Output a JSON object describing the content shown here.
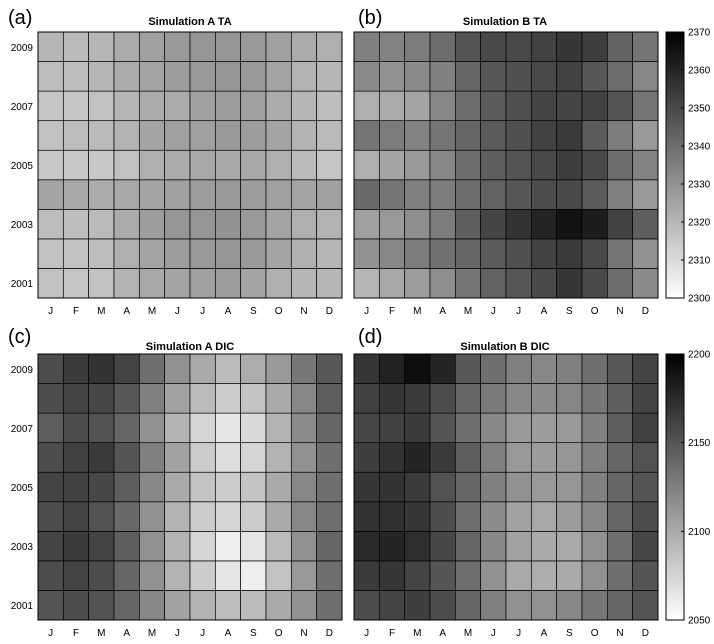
{
  "chart_data": [
    {
      "type": "heatmap",
      "panel_label": "(a)",
      "title": "Simulation A TA",
      "x": [
        "J",
        "F",
        "M",
        "A",
        "M",
        "J",
        "J",
        "A",
        "S",
        "O",
        "N",
        "D"
      ],
      "y": [
        2001,
        2002,
        2003,
        2004,
        2005,
        2006,
        2007,
        2008,
        2009
      ],
      "y_tick_labels": [
        "2001",
        "2003",
        "2005",
        "2007",
        "2009"
      ],
      "values": [
        [
          2317,
          2316,
          2317,
          2321,
          2324,
          2325,
          2326,
          2327,
          2325,
          2322,
          2320,
          2320
        ],
        [
          2317,
          2317,
          2318,
          2322,
          2325,
          2327,
          2328,
          2329,
          2328,
          2325,
          2322,
          2320
        ],
        [
          2318,
          2318,
          2319,
          2323,
          2327,
          2329,
          2329,
          2330,
          2328,
          2325,
          2322,
          2321
        ],
        [
          2325,
          2324,
          2323,
          2324,
          2325,
          2326,
          2327,
          2328,
          2327,
          2326,
          2325,
          2326
        ],
        [
          2315,
          2315,
          2315,
          2317,
          2322,
          2323,
          2324,
          2324,
          2324,
          2322,
          2319,
          2316
        ],
        [
          2317,
          2318,
          2319,
          2321,
          2325,
          2326,
          2326,
          2328,
          2327,
          2325,
          2321,
          2319
        ],
        [
          2316,
          2316,
          2317,
          2320,
          2323,
          2323,
          2326,
          2327,
          2326,
          2323,
          2320,
          2318
        ],
        [
          2318,
          2318,
          2320,
          2323,
          2325,
          2327,
          2328,
          2329,
          2328,
          2325,
          2321,
          2320
        ],
        [
          2320,
          2319,
          2320,
          2323,
          2326,
          2328,
          2329,
          2329,
          2328,
          2326,
          2323,
          2322
        ]
      ]
    },
    {
      "type": "heatmap",
      "panel_label": "(b)",
      "title": "Simulation B TA",
      "x": [
        "J",
        "F",
        "M",
        "A",
        "M",
        "J",
        "J",
        "A",
        "S",
        "O",
        "N",
        "D"
      ],
      "y": [
        2001,
        2002,
        2003,
        2004,
        2005,
        2006,
        2007,
        2008,
        2009
      ],
      "y_tick_labels": [
        "2001",
        "2003",
        "2005",
        "2007",
        "2009"
      ],
      "values": [
        [
          2320,
          2324,
          2327,
          2331,
          2338,
          2343,
          2346,
          2350,
          2355,
          2350,
          2340,
          2332
        ],
        [
          2330,
          2333,
          2336,
          2339,
          2342,
          2345,
          2348,
          2352,
          2354,
          2350,
          2338,
          2330
        ],
        [
          2326,
          2328,
          2331,
          2336,
          2344,
          2351,
          2356,
          2360,
          2365,
          2362,
          2352,
          2344
        ],
        [
          2341,
          2338,
          2335,
          2336,
          2340,
          2343,
          2346,
          2349,
          2350,
          2345,
          2335,
          2328
        ],
        [
          2322,
          2325,
          2328,
          2333,
          2340,
          2344,
          2347,
          2350,
          2353,
          2350,
          2340,
          2334
        ],
        [
          2338,
          2336,
          2334,
          2338,
          2342,
          2345,
          2348,
          2352,
          2354,
          2345,
          2336,
          2328
        ],
        [
          2322,
          2323,
          2325,
          2333,
          2340,
          2345,
          2348,
          2351,
          2351,
          2352,
          2347,
          2338
        ],
        [
          2332,
          2330,
          2332,
          2335,
          2342,
          2346,
          2348,
          2350,
          2352,
          2346,
          2340,
          2333
        ],
        [
          2335,
          2334,
          2336,
          2340,
          2347,
          2350,
          2350,
          2352,
          2355,
          2353,
          2343,
          2338
        ]
      ],
      "colorbar": {
        "ticks": [
          2300,
          2310,
          2320,
          2330,
          2340,
          2350,
          2360,
          2370
        ],
        "range": [
          2300,
          2370
        ]
      }
    },
    {
      "type": "heatmap",
      "panel_label": "(c)",
      "title": "Simulation A DIC",
      "x": [
        "J",
        "F",
        "M",
        "A",
        "M",
        "J",
        "J",
        "A",
        "S",
        "O",
        "N",
        "D"
      ],
      "y": [
        2001,
        2002,
        2003,
        2004,
        2005,
        2006,
        2007,
        2008,
        2009
      ],
      "y_tick_labels": [
        "2001",
        "2003",
        "2005",
        "2007",
        "2009"
      ],
      "values": [
        [
          2150,
          2155,
          2152,
          2140,
          2120,
          2105,
          2095,
          2088,
          2090,
          2100,
          2115,
          2135
        ],
        [
          2155,
          2160,
          2155,
          2140,
          2115,
          2095,
          2080,
          2065,
          2060,
          2085,
          2110,
          2135
        ],
        [
          2160,
          2165,
          2160,
          2145,
          2115,
          2095,
          2075,
          2060,
          2065,
          2090,
          2115,
          2140
        ],
        [
          2155,
          2160,
          2152,
          2138,
          2115,
          2095,
          2080,
          2075,
          2080,
          2100,
          2120,
          2135
        ],
        [
          2160,
          2162,
          2158,
          2145,
          2120,
          2100,
          2085,
          2080,
          2085,
          2100,
          2120,
          2135
        ],
        [
          2155,
          2162,
          2165,
          2150,
          2125,
          2105,
          2080,
          2070,
          2075,
          2095,
          2115,
          2135
        ],
        [
          2145,
          2155,
          2152,
          2140,
          2115,
          2095,
          2075,
          2065,
          2072,
          2095,
          2118,
          2140
        ],
        [
          2155,
          2160,
          2158,
          2148,
          2125,
          2105,
          2090,
          2080,
          2085,
          2100,
          2120,
          2145
        ],
        [
          2155,
          2165,
          2170,
          2160,
          2135,
          2115,
          2100,
          2090,
          2098,
          2110,
          2130,
          2148
        ]
      ]
    },
    {
      "type": "heatmap",
      "panel_label": "(d)",
      "title": "Simulation B DIC",
      "x": [
        "J",
        "F",
        "M",
        "A",
        "M",
        "J",
        "J",
        "A",
        "S",
        "O",
        "N",
        "D"
      ],
      "y": [
        2001,
        2002,
        2003,
        2004,
        2005,
        2006,
        2007,
        2008,
        2009
      ],
      "y_tick_labels": [
        "2001",
        "2003",
        "2005",
        "2007",
        "2009"
      ],
      "values": [
        [
          2155,
          2160,
          2163,
          2155,
          2140,
          2125,
          2115,
          2115,
          2120,
          2130,
          2140,
          2150
        ],
        [
          2165,
          2168,
          2160,
          2150,
          2135,
          2115,
          2100,
          2098,
          2100,
          2115,
          2135,
          2150
        ],
        [
          2175,
          2178,
          2173,
          2158,
          2140,
          2120,
          2105,
          2100,
          2100,
          2115,
          2135,
          2158
        ],
        [
          2170,
          2172,
          2168,
          2155,
          2135,
          2118,
          2105,
          2102,
          2108,
          2120,
          2140,
          2155
        ],
        [
          2168,
          2170,
          2165,
          2152,
          2140,
          2125,
          2115,
          2110,
          2112,
          2125,
          2140,
          2150
        ],
        [
          2163,
          2170,
          2178,
          2165,
          2145,
          2125,
          2110,
          2108,
          2112,
          2125,
          2140,
          2152
        ],
        [
          2158,
          2162,
          2165,
          2150,
          2135,
          2120,
          2110,
          2108,
          2110,
          2125,
          2145,
          2162
        ],
        [
          2162,
          2168,
          2165,
          2155,
          2140,
          2128,
          2120,
          2118,
          2122,
          2130,
          2145,
          2160
        ],
        [
          2168,
          2180,
          2192,
          2178,
          2148,
          2135,
          2125,
          2120,
          2125,
          2135,
          2148,
          2160
        ]
      ],
      "colorbar": {
        "ticks": [
          2050,
          2100,
          2150,
          2200
        ],
        "range": [
          2050,
          2200
        ]
      }
    }
  ]
}
